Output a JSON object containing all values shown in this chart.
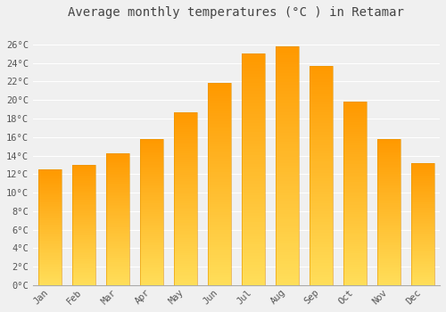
{
  "title": "Average monthly temperatures (°C ) in Retamar",
  "months": [
    "Jan",
    "Feb",
    "Mar",
    "Apr",
    "May",
    "Jun",
    "Jul",
    "Aug",
    "Sep",
    "Oct",
    "Nov",
    "Dec"
  ],
  "temperatures": [
    12.5,
    13.0,
    14.2,
    15.8,
    18.7,
    21.8,
    25.0,
    25.8,
    23.7,
    19.8,
    15.8,
    13.2
  ],
  "ylim": [
    0,
    28
  ],
  "yticks": [
    0,
    2,
    4,
    6,
    8,
    10,
    12,
    14,
    16,
    18,
    20,
    22,
    24,
    26
  ],
  "background_color": "#f0f0f0",
  "grid_color": "#ffffff",
  "title_fontsize": 10,
  "tick_fontsize": 7.5,
  "bar_color_bottom": "#FFD966",
  "bar_color_top": "#FFA500",
  "bar_edge_color": "#E59400",
  "bar_width": 0.7
}
